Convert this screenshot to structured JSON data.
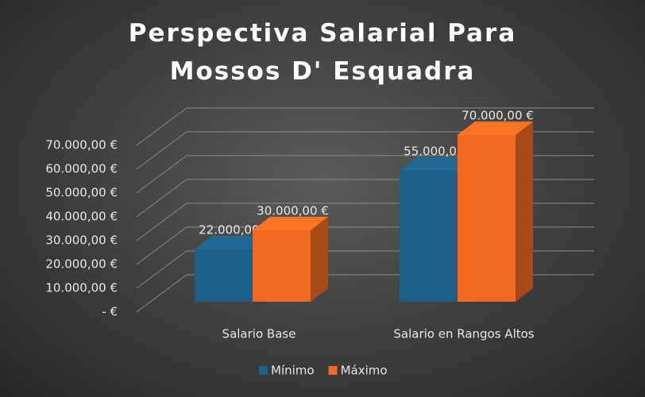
{
  "chart_data": {
    "type": "bar3d",
    "title": "Perspectiva Salarial Para Mossos D' Esquadra",
    "categories": [
      "Salario Base",
      "Salario en Rangos Altos"
    ],
    "series": [
      {
        "name": "Mínimo",
        "color": "#1d5f86",
        "values": [
          22000,
          55000
        ],
        "value_labels": [
          "22.000,00 €",
          "55.000,00 €"
        ]
      },
      {
        "name": "Máximo",
        "color": "#f06a22",
        "values": [
          30000,
          70000
        ],
        "value_labels": [
          "30.000,00 €",
          "70.000,00 €"
        ]
      }
    ],
    "ylim": [
      0,
      70000
    ],
    "yticks": [
      {
        "value": 0,
        "label": "-  €"
      },
      {
        "value": 10000,
        "label": "10.000,00 €"
      },
      {
        "value": 20000,
        "label": "20.000,00 €"
      },
      {
        "value": 30000,
        "label": "30.000,00 €"
      },
      {
        "value": 40000,
        "label": "40.000,00 €"
      },
      {
        "value": 50000,
        "label": "50.000,00 €"
      },
      {
        "value": 60000,
        "label": "60.000,00 €"
      },
      {
        "value": 70000,
        "label": "70.000,00 €"
      }
    ],
    "grid": true,
    "legend": "bottom"
  }
}
